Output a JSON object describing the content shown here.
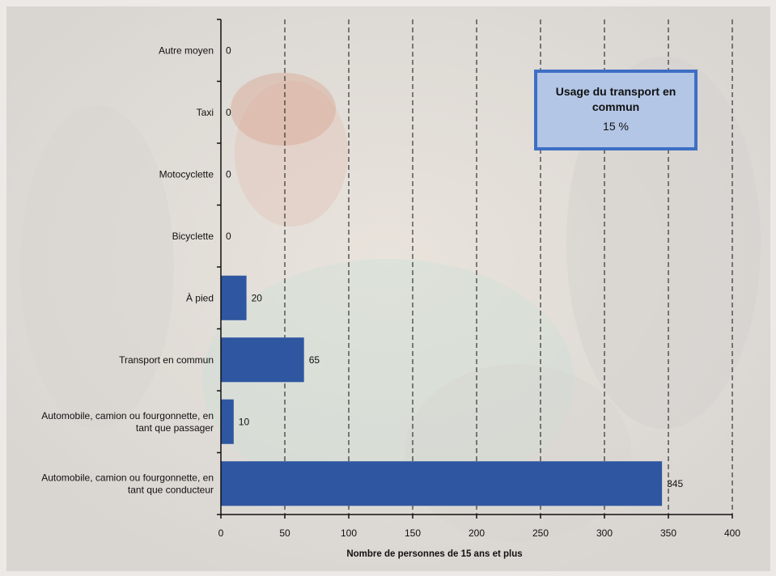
{
  "chart_data": {
    "type": "bar",
    "orientation": "horizontal",
    "categories": [
      "Autre moyen",
      "Taxi",
      "Motocyclette",
      "Bicyclette",
      "À pied",
      "Transport en commun",
      "Automobile, camion ou fourgonnette, en tant que passager",
      "Automobile, camion ou fourgonnette, en tant que conducteur"
    ],
    "category_lines": [
      [
        "Autre moyen"
      ],
      [
        "Taxi"
      ],
      [
        "Motocyclette"
      ],
      [
        "Bicyclette"
      ],
      [
        "À pied"
      ],
      [
        "Transport en commun"
      ],
      [
        "Automobile, camion ou fourgonnette, en",
        "tant que passager"
      ],
      [
        "Automobile, camion ou fourgonnette, en",
        "tant que conducteur"
      ]
    ],
    "values": [
      0,
      0,
      0,
      0,
      20,
      65,
      10,
      345
    ],
    "xlabel": "Nombre de personnes de 15 ans et plus",
    "ylabel": "",
    "xlim": [
      0,
      400
    ],
    "xticks": [
      0,
      50,
      100,
      150,
      200,
      250,
      300,
      350,
      400
    ],
    "grid": "vertical dashed",
    "bar_color": "#2f56a0"
  },
  "callout": {
    "title": "Usage du transport en commun",
    "value": "15 %",
    "fill_color": "#b3c6e6",
    "border_color": "#3d6fc4"
  }
}
